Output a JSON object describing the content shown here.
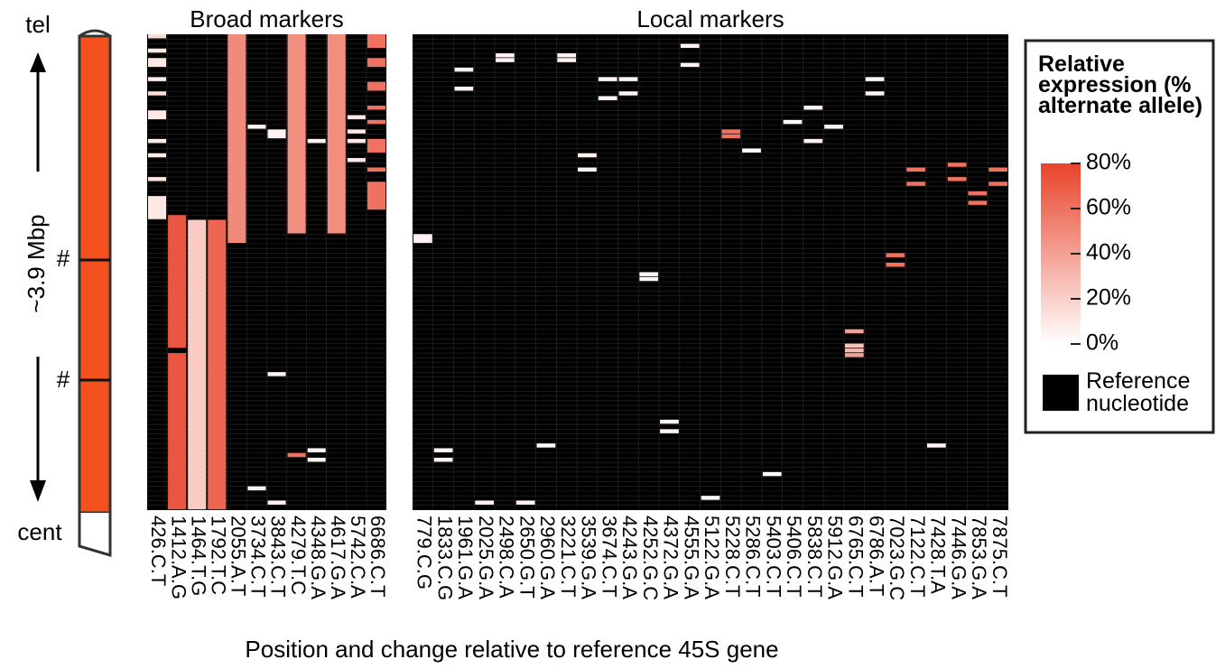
{
  "chart_data": {
    "type": "heatmap",
    "x_label": "Position and change relative to reference 45S gene",
    "ylim": [
      0,
      100
    ],
    "colors": {
      "low": "#ffffff",
      "high": "#e8432a",
      "reference": "#000000"
    },
    "color_scale": {
      "title": "Relative expression (% alternate allele)",
      "lim": [
        0,
        80
      ],
      "ticks": [
        {
          "value": 0,
          "label": "0%"
        },
        {
          "value": 20,
          "label": "20%"
        },
        {
          "value": 40,
          "label": "40%"
        },
        {
          "value": 60,
          "label": "60%"
        },
        {
          "value": 80,
          "label": "80%"
        }
      ],
      "reference_label": "Reference nucleotide"
    },
    "chromosome": {
      "top_label": "tel",
      "bottom_label": "cent",
      "length_label": "~3.9 Mbp",
      "marks": [
        "#",
        "#"
      ],
      "color": "#f4511e"
    },
    "panels": [
      {
        "title": "Broad markers",
        "columns": [
          {
            "name": "426.C.T",
            "runs": [
              {
                "rows": [
                  0,
                  1
                ],
                "value": 15
              },
              {
                "rows": [
                  3,
                  4
                ],
                "value": 10
              },
              {
                "rows": [
                  5,
                  7
                ],
                "value": 10
              },
              {
                "rows": [
                  9,
                  10
                ],
                "value": 8
              },
              {
                "rows": [
                  12,
                  13
                ],
                "value": 15
              },
              {
                "rows": [
                  16,
                  18
                ],
                "value": 10
              },
              {
                "rows": [
                  22,
                  23
                ],
                "value": 10
              },
              {
                "rows": [
                  25,
                  26
                ],
                "value": 10
              },
              {
                "rows": [
                  30,
                  31
                ],
                "value": 12
              },
              {
                "rows": [
                  34,
                  39
                ],
                "value": 10
              }
            ]
          },
          {
            "name": "1412.A.G",
            "runs": [
              {
                "rows": [
                  38,
                  66
                ],
                "value": 72
              },
              {
                "rows": [
                  67,
                  100
                ],
                "value": 72
              }
            ]
          },
          {
            "name": "1464.T.G",
            "runs": [
              {
                "rows": [
                  39,
                  100
                ],
                "value": 22
              }
            ]
          },
          {
            "name": "1792.T.C",
            "runs": [
              {
                "rows": [
                  39,
                  100
                ],
                "value": 65
              }
            ]
          },
          {
            "name": "2055.A.T",
            "runs": [
              {
                "rows": [
                  0,
                  44
                ],
                "value": 50
              }
            ]
          },
          {
            "name": "3734.C.T",
            "runs": [
              {
                "rows": [
                  19,
                  20
                ],
                "value": 5
              },
              {
                "rows": [
                  95,
                  96
                ],
                "value": 5
              }
            ]
          },
          {
            "name": "3843.C.T",
            "runs": [
              {
                "rows": [
                  20,
                  22
                ],
                "value": 5
              },
              {
                "rows": [
                  71,
                  72
                ],
                "value": 5
              },
              {
                "rows": [
                  98,
                  99
                ],
                "value": 5
              }
            ]
          },
          {
            "name": "4279.T.C",
            "runs": [
              {
                "rows": [
                  0,
                  42
                ],
                "value": 48
              },
              {
                "rows": [
                  88,
                  89
                ],
                "value": 60
              }
            ]
          },
          {
            "name": "4348.G.A",
            "runs": [
              {
                "rows": [
                  22,
                  23
                ],
                "value": 5
              },
              {
                "rows": [
                  87,
                  88
                ],
                "value": 5
              },
              {
                "rows": [
                  89,
                  90
                ],
                "value": 5
              }
            ]
          },
          {
            "name": "4617.G.A",
            "runs": [
              {
                "rows": [
                  0,
                  42
                ],
                "value": 48
              }
            ]
          },
          {
            "name": "5742.C.A",
            "runs": [
              {
                "rows": [
                  17,
                  18
                ],
                "value": 10
              },
              {
                "rows": [
                  20,
                  21
                ],
                "value": 10
              },
              {
                "rows": [
                  22,
                  23
                ],
                "value": 10
              },
              {
                "rows": [
                  26,
                  27
                ],
                "value": 10
              }
            ]
          },
          {
            "name": "6686.C.T",
            "runs": [
              {
                "rows": [
                  0,
                  3
                ],
                "value": 60
              },
              {
                "rows": [
                  5,
                  7
                ],
                "value": 60
              },
              {
                "rows": [
                  10,
                  12
                ],
                "value": 60
              },
              {
                "rows": [
                  15,
                  16
                ],
                "value": 60
              },
              {
                "rows": [
                  18,
                  19
                ],
                "value": 60
              },
              {
                "rows": [
                  22,
                  25
                ],
                "value": 60
              },
              {
                "rows": [
                  28,
                  29
                ],
                "value": 60
              },
              {
                "rows": [
                  31,
                  37
                ],
                "value": 60
              }
            ]
          }
        ]
      },
      {
        "title": "Local markers",
        "columns": [
          {
            "name": "779.C.G",
            "runs": [
              {
                "rows": [
                  42,
                  44
                ],
                "value": 5
              }
            ]
          },
          {
            "name": "1833.C.G",
            "runs": [
              {
                "rows": [
                  87,
                  88
                ],
                "value": 5
              },
              {
                "rows": [
                  89,
                  90
                ],
                "value": 5
              }
            ]
          },
          {
            "name": "1961.G.A",
            "runs": [
              {
                "rows": [
                  7,
                  8
                ],
                "value": 5
              },
              {
                "rows": [
                  11,
                  12
                ],
                "value": 5
              }
            ]
          },
          {
            "name": "2025.G.A",
            "runs": [
              {
                "rows": [
                  98,
                  99
                ],
                "value": 5
              }
            ]
          },
          {
            "name": "2498.C.A",
            "runs": [
              {
                "rows": [
                  4,
                  5
                ],
                "value": 5
              },
              {
                "rows": [
                  5,
                  6
                ],
                "value": 5
              }
            ]
          },
          {
            "name": "2650.G.T",
            "runs": [
              {
                "rows": [
                  98,
                  99
                ],
                "value": 5
              }
            ]
          },
          {
            "name": "2960.G.A",
            "runs": [
              {
                "rows": [
                  86,
                  87
                ],
                "value": 2
              }
            ]
          },
          {
            "name": "3221.C.T",
            "runs": [
              {
                "rows": [
                  4,
                  5
                ],
                "value": 5
              },
              {
                "rows": [
                  5,
                  6
                ],
                "value": 5
              }
            ]
          },
          {
            "name": "3539.G.A",
            "runs": [
              {
                "rows": [
                  25,
                  26
                ],
                "value": 5
              },
              {
                "rows": [
                  28,
                  29
                ],
                "value": 5
              }
            ]
          },
          {
            "name": "3674.C.T",
            "runs": [
              {
                "rows": [
                  9,
                  10
                ],
                "value": 5
              },
              {
                "rows": [
                  13,
                  14
                ],
                "value": 5
              }
            ]
          },
          {
            "name": "4243.G.A",
            "runs": [
              {
                "rows": [
                  9,
                  10
                ],
                "value": 5
              },
              {
                "rows": [
                  12,
                  13
                ],
                "value": 5
              }
            ]
          },
          {
            "name": "4252.G.C",
            "runs": [
              {
                "rows": [
                  50,
                  51
                ],
                "value": 5
              },
              {
                "rows": [
                  51,
                  52
                ],
                "value": 5
              }
            ]
          },
          {
            "name": "4372.G.A",
            "runs": [
              {
                "rows": [
                  81,
                  82
                ],
                "value": 5
              },
              {
                "rows": [
                  83,
                  84
                ],
                "value": 5
              }
            ]
          },
          {
            "name": "4555.G.A",
            "runs": [
              {
                "rows": [
                  2,
                  3
                ],
                "value": 5
              },
              {
                "rows": [
                  6,
                  7
                ],
                "value": 5
              }
            ]
          },
          {
            "name": "5122.G.A",
            "runs": [
              {
                "rows": [
                  97,
                  98
                ],
                "value": 2
              }
            ]
          },
          {
            "name": "5228.C.T",
            "runs": [
              {
                "rows": [
                  20,
                  21
                ],
                "value": 60
              },
              {
                "rows": [
                  21,
                  22
                ],
                "value": 60
              }
            ]
          },
          {
            "name": "5286.C.T",
            "runs": [
              {
                "rows": [
                  24,
                  25
                ],
                "value": 2
              }
            ]
          },
          {
            "name": "5403.C.T",
            "runs": [
              {
                "rows": [
                  92,
                  93
                ],
                "value": 2
              }
            ]
          },
          {
            "name": "5406.C.T",
            "runs": [
              {
                "rows": [
                  18,
                  19
                ],
                "value": 2
              }
            ]
          },
          {
            "name": "5838.C.T",
            "runs": [
              {
                "rows": [
                  15,
                  16
                ],
                "value": 5
              },
              {
                "rows": [
                  22,
                  23
                ],
                "value": 5
              }
            ]
          },
          {
            "name": "5912.G.A",
            "runs": [
              {
                "rows": [
                  19,
                  20
                ],
                "value": 2
              }
            ]
          },
          {
            "name": "6765.C.T",
            "runs": [
              {
                "rows": [
                  62,
                  63
                ],
                "value": 40
              },
              {
                "rows": [
                  65,
                  66
                ],
                "value": 25
              },
              {
                "rows": [
                  66,
                  67
                ],
                "value": 30
              },
              {
                "rows": [
                  67,
                  68
                ],
                "value": 40
              }
            ]
          },
          {
            "name": "6786.A.T",
            "runs": [
              {
                "rows": [
                  9,
                  10
                ],
                "value": 5
              },
              {
                "rows": [
                  12,
                  13
                ],
                "value": 5
              }
            ]
          },
          {
            "name": "7023.G.C",
            "runs": [
              {
                "rows": [
                  46,
                  47
                ],
                "value": 60
              },
              {
                "rows": [
                  48,
                  49
                ],
                "value": 60
              }
            ]
          },
          {
            "name": "7122.C.T",
            "runs": [
              {
                "rows": [
                  28,
                  29
                ],
                "value": 60
              },
              {
                "rows": [
                  31,
                  32
                ],
                "value": 60
              }
            ]
          },
          {
            "name": "7428.T.A",
            "runs": [
              {
                "rows": [
                  86,
                  87
                ],
                "value": 5
              }
            ]
          },
          {
            "name": "7446.G.A",
            "runs": [
              {
                "rows": [
                  27,
                  28
                ],
                "value": 60
              },
              {
                "rows": [
                  30,
                  31
                ],
                "value": 60
              }
            ]
          },
          {
            "name": "7853.G.A",
            "runs": [
              {
                "rows": [
                  33,
                  34
                ],
                "value": 60
              },
              {
                "rows": [
                  35,
                  36
                ],
                "value": 60
              }
            ]
          },
          {
            "name": "7875.C.T",
            "runs": [
              {
                "rows": [
                  28,
                  29
                ],
                "value": 60
              },
              {
                "rows": [
                  31,
                  32
                ],
                "value": 60
              }
            ]
          }
        ]
      }
    ]
  }
}
